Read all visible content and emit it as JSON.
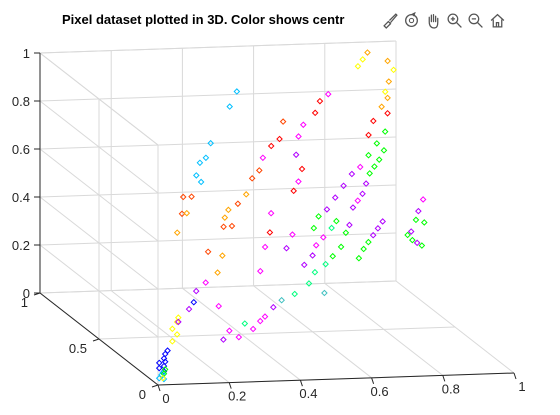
{
  "window": {
    "title": "Pixel dataset plotted in 3D. Color shows centr"
  },
  "toolbar": {
    "buttons": [
      {
        "name": "brush-icon"
      },
      {
        "name": "rotate-3d-icon"
      },
      {
        "name": "pan-hand-icon"
      },
      {
        "name": "zoom-in-icon"
      },
      {
        "name": "zoom-out-icon"
      },
      {
        "name": "home-icon"
      }
    ]
  },
  "colors": {
    "axis": "#262626",
    "grid": "#d9d9d9",
    "clusters": [
      "#0000ff",
      "#00bfff",
      "#00ff7f",
      "#00ff00",
      "#ffff00",
      "#ffa500",
      "#ff4500",
      "#ff0000",
      "#ff00ff",
      "#b000ff",
      "#40c0c0"
    ]
  },
  "chart_data": {
    "type": "scatter",
    "title": "Pixel dataset plotted in 3D. Color shows centr",
    "xlim": [
      0,
      1
    ],
    "ylim": [
      0,
      1
    ],
    "zlim": [
      0,
      1
    ],
    "x_ticks": [
      "0",
      "0.2",
      "0.4",
      "0.6",
      "0.8",
      "1"
    ],
    "y_ticks": [
      "0",
      "0.5",
      "1"
    ],
    "z_ticks": [
      "0",
      "0.2",
      "0.4",
      "0.6",
      "0.8",
      "1"
    ],
    "grid": true,
    "marker": "diamond-open",
    "points": [
      {
        "x": 0.02,
        "y": 0.05,
        "z": 0.05,
        "c": 0
      },
      {
        "x": 0.03,
        "y": 0.08,
        "z": 0.06,
        "c": 0
      },
      {
        "x": 0.05,
        "y": 0.1,
        "z": 0.07,
        "c": 0
      },
      {
        "x": 0.04,
        "y": 0.07,
        "z": 0.05,
        "c": 0
      },
      {
        "x": 0.06,
        "y": 0.12,
        "z": 0.08,
        "c": 0
      },
      {
        "x": 0.03,
        "y": 0.04,
        "z": 0.04,
        "c": 0
      },
      {
        "x": 0.07,
        "y": 0.13,
        "z": 0.09,
        "c": 0
      },
      {
        "x": 0.05,
        "y": 0.09,
        "z": 0.06,
        "c": 0
      },
      {
        "x": 0.02,
        "y": 0.03,
        "z": 0.03,
        "c": 1
      },
      {
        "x": 0.01,
        "y": 0.02,
        "z": 0.02,
        "c": 1
      },
      {
        "x": 0.03,
        "y": 0.05,
        "z": 0.03,
        "c": 1
      },
      {
        "x": 0.02,
        "y": 0.01,
        "z": 0.02,
        "c": 1
      },
      {
        "x": 0.04,
        "y": 0.06,
        "z": 0.04,
        "c": 3
      },
      {
        "x": 0.03,
        "y": 0.04,
        "z": 0.03,
        "c": 3
      },
      {
        "x": 0.02,
        "y": 0.02,
        "z": 0.02,
        "c": 4
      },
      {
        "x": 0.1,
        "y": 0.18,
        "z": 0.16,
        "c": 4
      },
      {
        "x": 0.12,
        "y": 0.2,
        "z": 0.18,
        "c": 4
      },
      {
        "x": 0.13,
        "y": 0.22,
        "z": 0.19,
        "c": 4
      },
      {
        "x": 0.11,
        "y": 0.17,
        "z": 0.14,
        "c": 4
      },
      {
        "x": 0.09,
        "y": 0.15,
        "z": 0.12,
        "c": 4
      },
      {
        "x": 0.14,
        "y": 0.25,
        "z": 0.16,
        "c": 9
      },
      {
        "x": 0.18,
        "y": 0.28,
        "z": 0.2,
        "c": 9
      },
      {
        "x": 0.2,
        "y": 0.3,
        "z": 0.22,
        "c": 0
      },
      {
        "x": 0.22,
        "y": 0.34,
        "z": 0.25,
        "c": 9
      },
      {
        "x": 0.25,
        "y": 0.35,
        "z": 0.28,
        "c": 8
      },
      {
        "x": 0.27,
        "y": 0.3,
        "z": 0.2,
        "c": 8
      },
      {
        "x": 0.3,
        "y": 0.4,
        "z": 0.3,
        "c": 5
      },
      {
        "x": 0.33,
        "y": 0.45,
        "z": 0.35,
        "c": 5
      },
      {
        "x": 0.28,
        "y": 0.42,
        "z": 0.38,
        "c": 6
      },
      {
        "x": 0.35,
        "y": 0.5,
        "z": 0.45,
        "c": 6
      },
      {
        "x": 0.38,
        "y": 0.55,
        "z": 0.5,
        "c": 5
      },
      {
        "x": 0.4,
        "y": 0.58,
        "z": 0.42,
        "c": 6
      },
      {
        "x": 0.32,
        "y": 0.6,
        "z": 0.6,
        "c": 1
      },
      {
        "x": 0.35,
        "y": 0.65,
        "z": 0.68,
        "c": 1
      },
      {
        "x": 0.38,
        "y": 0.7,
        "z": 0.72,
        "c": 1
      },
      {
        "x": 0.45,
        "y": 0.75,
        "z": 0.85,
        "c": 1
      },
      {
        "x": 0.48,
        "y": 0.78,
        "z": 0.9,
        "c": 1
      },
      {
        "x": 0.42,
        "y": 0.4,
        "z": 0.3,
        "c": 8
      },
      {
        "x": 0.45,
        "y": 0.45,
        "z": 0.38,
        "c": 8
      },
      {
        "x": 0.48,
        "y": 0.5,
        "z": 0.42,
        "c": 7
      },
      {
        "x": 0.5,
        "y": 0.55,
        "z": 0.48,
        "c": 8
      },
      {
        "x": 0.52,
        "y": 0.48,
        "z": 0.36,
        "c": 9
      },
      {
        "x": 0.55,
        "y": 0.52,
        "z": 0.4,
        "c": 8
      },
      {
        "x": 0.58,
        "y": 0.6,
        "z": 0.55,
        "c": 7
      },
      {
        "x": 0.6,
        "y": 0.62,
        "z": 0.58,
        "c": 8
      },
      {
        "x": 0.62,
        "y": 0.65,
        "z": 0.62,
        "c": 7
      },
      {
        "x": 0.5,
        "y": 0.35,
        "z": 0.22,
        "c": 2
      },
      {
        "x": 0.55,
        "y": 0.38,
        "z": 0.25,
        "c": 2
      },
      {
        "x": 0.58,
        "y": 0.42,
        "z": 0.28,
        "c": 2
      },
      {
        "x": 0.6,
        "y": 0.4,
        "z": 0.2,
        "c": 10
      },
      {
        "x": 0.62,
        "y": 0.45,
        "z": 0.3,
        "c": 2
      },
      {
        "x": 0.65,
        "y": 0.48,
        "z": 0.32,
        "c": 3
      },
      {
        "x": 0.68,
        "y": 0.5,
        "z": 0.35,
        "c": 3
      },
      {
        "x": 0.7,
        "y": 0.52,
        "z": 0.4,
        "c": 3
      },
      {
        "x": 0.72,
        "y": 0.55,
        "z": 0.42,
        "c": 9
      },
      {
        "x": 0.74,
        "y": 0.58,
        "z": 0.48,
        "c": 9
      },
      {
        "x": 0.76,
        "y": 0.6,
        "z": 0.5,
        "c": 8
      },
      {
        "x": 0.78,
        "y": 0.62,
        "z": 0.52,
        "c": 9
      },
      {
        "x": 0.8,
        "y": 0.65,
        "z": 0.55,
        "c": 9
      },
      {
        "x": 0.82,
        "y": 0.68,
        "z": 0.58,
        "c": 3
      },
      {
        "x": 0.84,
        "y": 0.7,
        "z": 0.6,
        "c": 3
      },
      {
        "x": 0.86,
        "y": 0.72,
        "z": 0.62,
        "c": 3
      },
      {
        "x": 0.88,
        "y": 0.74,
        "z": 0.65,
        "c": 3
      },
      {
        "x": 0.85,
        "y": 0.78,
        "z": 0.7,
        "c": 7
      },
      {
        "x": 0.87,
        "y": 0.8,
        "z": 0.75,
        "c": 7
      },
      {
        "x": 0.9,
        "y": 0.82,
        "z": 0.8,
        "c": 5
      },
      {
        "x": 0.92,
        "y": 0.85,
        "z": 0.85,
        "c": 4
      },
      {
        "x": 0.94,
        "y": 0.88,
        "z": 0.88,
        "c": 5
      },
      {
        "x": 0.96,
        "y": 0.9,
        "z": 0.92,
        "c": 4
      },
      {
        "x": 0.95,
        "y": 0.92,
        "z": 0.95,
        "c": 5
      },
      {
        "x": 0.93,
        "y": 0.86,
        "z": 0.82,
        "c": 5
      },
      {
        "x": 0.91,
        "y": 0.8,
        "z": 0.78,
        "c": 7
      },
      {
        "x": 0.89,
        "y": 0.76,
        "z": 0.72,
        "c": 3
      },
      {
        "x": 0.86,
        "y": 0.74,
        "z": 0.68,
        "c": 3
      },
      {
        "x": 0.83,
        "y": 0.72,
        "z": 0.64,
        "c": 3
      },
      {
        "x": 0.8,
        "y": 0.7,
        "z": 0.6,
        "c": 8
      },
      {
        "x": 0.77,
        "y": 0.68,
        "z": 0.58,
        "c": 9
      },
      {
        "x": 0.74,
        "y": 0.66,
        "z": 0.54,
        "c": 9
      },
      {
        "x": 0.71,
        "y": 0.64,
        "z": 0.5,
        "c": 9
      },
      {
        "x": 0.68,
        "y": 0.62,
        "z": 0.46,
        "c": 9
      },
      {
        "x": 0.65,
        "y": 0.6,
        "z": 0.44,
        "c": 3
      },
      {
        "x": 0.63,
        "y": 0.58,
        "z": 0.4,
        "c": 3
      },
      {
        "x": 0.9,
        "y": 0.6,
        "z": 0.35,
        "c": 3
      },
      {
        "x": 0.92,
        "y": 0.62,
        "z": 0.32,
        "c": 3
      },
      {
        "x": 0.94,
        "y": 0.64,
        "z": 0.3,
        "c": 9
      },
      {
        "x": 0.96,
        "y": 0.66,
        "z": 0.28,
        "c": 3
      },
      {
        "x": 0.98,
        "y": 0.7,
        "z": 0.36,
        "c": 3
      },
      {
        "x": 0.97,
        "y": 0.72,
        "z": 0.4,
        "c": 9
      },
      {
        "x": 0.99,
        "y": 0.74,
        "z": 0.44,
        "c": 8
      },
      {
        "x": 0.95,
        "y": 0.68,
        "z": 0.38,
        "c": 3
      },
      {
        "x": 0.93,
        "y": 0.66,
        "z": 0.34,
        "c": 9
      },
      {
        "x": 0.4,
        "y": 0.3,
        "z": 0.15,
        "c": 8
      },
      {
        "x": 0.43,
        "y": 0.32,
        "z": 0.18,
        "c": 9
      },
      {
        "x": 0.46,
        "y": 0.34,
        "z": 0.2,
        "c": 10
      },
      {
        "x": 0.35,
        "y": 0.25,
        "z": 0.12,
        "c": 8
      },
      {
        "x": 0.38,
        "y": 0.28,
        "z": 0.14,
        "c": 8
      },
      {
        "x": 0.3,
        "y": 0.22,
        "z": 0.1,
        "c": 8
      },
      {
        "x": 0.25,
        "y": 0.2,
        "z": 0.1,
        "c": 9
      },
      {
        "x": 0.28,
        "y": 0.24,
        "z": 0.12,
        "c": 8
      },
      {
        "x": 0.33,
        "y": 0.26,
        "z": 0.14,
        "c": 2
      },
      {
        "x": 0.55,
        "y": 0.7,
        "z": 0.7,
        "c": 7
      },
      {
        "x": 0.58,
        "y": 0.72,
        "z": 0.72,
        "c": 7
      },
      {
        "x": 0.6,
        "y": 0.75,
        "z": 0.78,
        "c": 6
      },
      {
        "x": 0.52,
        "y": 0.68,
        "z": 0.66,
        "c": 8
      },
      {
        "x": 0.5,
        "y": 0.65,
        "z": 0.62,
        "c": 6
      },
      {
        "x": 0.47,
        "y": 0.62,
        "z": 0.6,
        "c": 6
      },
      {
        "x": 0.44,
        "y": 0.58,
        "z": 0.55,
        "c": 5
      },
      {
        "x": 0.41,
        "y": 0.56,
        "z": 0.52,
        "c": 6
      },
      {
        "x": 0.36,
        "y": 0.52,
        "z": 0.48,
        "c": 5
      },
      {
        "x": 0.7,
        "y": 0.78,
        "z": 0.8,
        "c": 7
      },
      {
        "x": 0.72,
        "y": 0.8,
        "z": 0.84,
        "c": 7
      },
      {
        "x": 0.75,
        "y": 0.82,
        "z": 0.86,
        "c": 8
      },
      {
        "x": 0.66,
        "y": 0.76,
        "z": 0.76,
        "c": 8
      },
      {
        "x": 0.64,
        "y": 0.74,
        "z": 0.72,
        "c": 8
      },
      {
        "x": 0.62,
        "y": 0.7,
        "z": 0.66,
        "c": 9
      },
      {
        "x": 0.88,
        "y": 0.92,
        "z": 0.96,
        "c": 4
      },
      {
        "x": 0.9,
        "y": 0.94,
        "z": 0.98,
        "c": 5
      },
      {
        "x": 0.86,
        "y": 0.9,
        "z": 0.94,
        "c": 4
      },
      {
        "x": 0.56,
        "y": 0.45,
        "z": 0.3,
        "c": 9
      },
      {
        "x": 0.59,
        "y": 0.47,
        "z": 0.33,
        "c": 9
      },
      {
        "x": 0.61,
        "y": 0.5,
        "z": 0.36,
        "c": 8
      },
      {
        "x": 0.64,
        "y": 0.53,
        "z": 0.38,
        "c": 8
      },
      {
        "x": 0.67,
        "y": 0.55,
        "z": 0.41,
        "c": 2
      },
      {
        "x": 0.69,
        "y": 0.57,
        "z": 0.43,
        "c": 3
      },
      {
        "x": 0.73,
        "y": 0.5,
        "z": 0.3,
        "c": 3
      },
      {
        "x": 0.75,
        "y": 0.52,
        "z": 0.33,
        "c": 3
      },
      {
        "x": 0.77,
        "y": 0.54,
        "z": 0.35,
        "c": 3
      },
      {
        "x": 0.79,
        "y": 0.56,
        "z": 0.37,
        "c": 9
      },
      {
        "x": 0.81,
        "y": 0.58,
        "z": 0.39,
        "c": 9
      },
      {
        "x": 0.83,
        "y": 0.6,
        "z": 0.41,
        "c": 9
      },
      {
        "x": 0.2,
        "y": 0.4,
        "z": 0.55,
        "c": 6
      },
      {
        "x": 0.22,
        "y": 0.45,
        "z": 0.6,
        "c": 6
      },
      {
        "x": 0.24,
        "y": 0.48,
        "z": 0.52,
        "c": 5
      },
      {
        "x": 0.18,
        "y": 0.38,
        "z": 0.48,
        "c": 5
      },
      {
        "x": 0.26,
        "y": 0.5,
        "z": 0.58,
        "c": 6
      },
      {
        "x": 0.3,
        "y": 0.55,
        "z": 0.7,
        "c": 1
      },
      {
        "x": 0.28,
        "y": 0.52,
        "z": 0.66,
        "c": 1
      }
    ]
  }
}
